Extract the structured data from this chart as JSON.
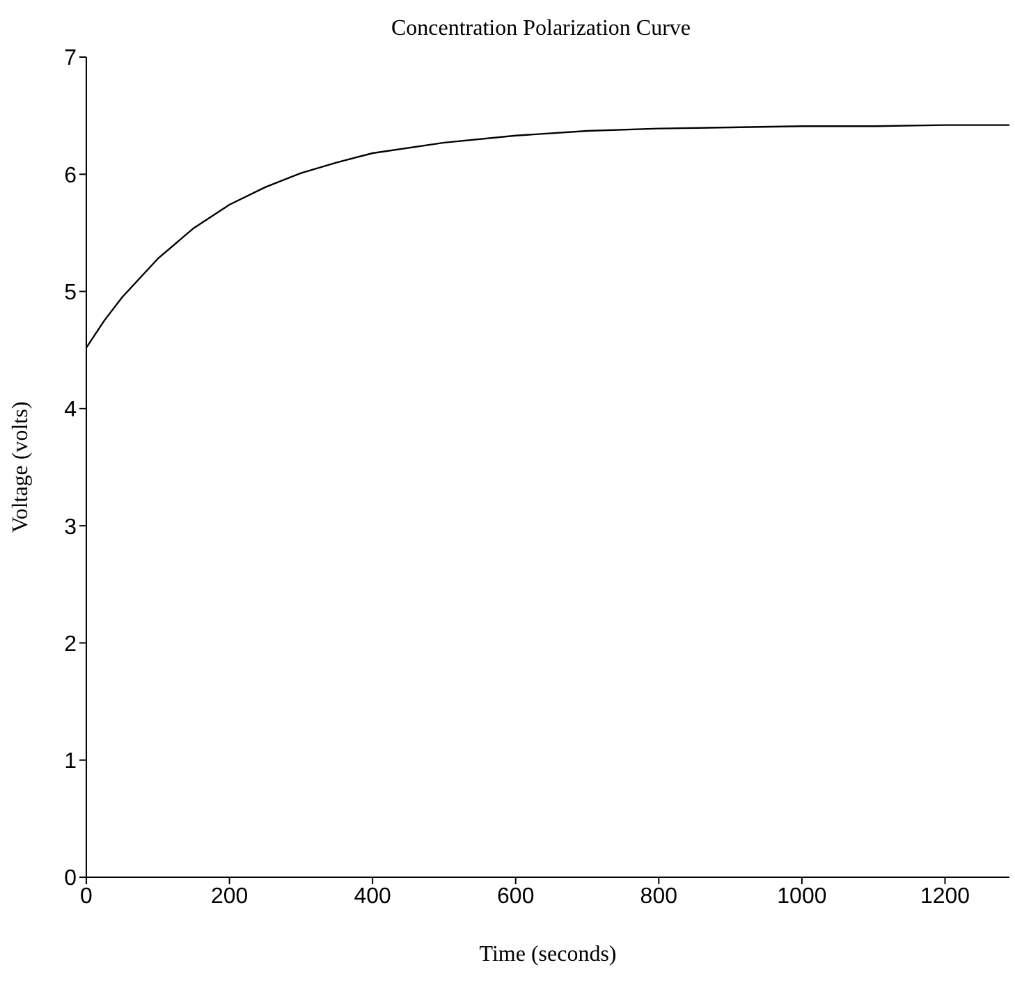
{
  "chart_data": {
    "type": "line",
    "title": "Concentration Polarization Curve",
    "xlabel": "Time (seconds)",
    "ylabel": "Voltage (volts)",
    "x": [
      0,
      25,
      50,
      100,
      150,
      200,
      250,
      300,
      350,
      400,
      500,
      600,
      700,
      800,
      900,
      1000,
      1100,
      1200,
      1290
    ],
    "series": [
      {
        "color": "#000000",
        "values": [
          4.52,
          4.75,
          4.95,
          5.28,
          5.54,
          5.74,
          5.89,
          6.01,
          6.1,
          6.18,
          6.27,
          6.33,
          6.37,
          6.39,
          6.4,
          6.41,
          6.41,
          6.42,
          6.42
        ]
      }
    ],
    "xlim": [
      0,
      1290
    ],
    "xticks": [
      0,
      200,
      400,
      600,
      800,
      1000,
      1200
    ],
    "ylim": [
      0,
      7
    ],
    "yticks": [
      0,
      1,
      2,
      3,
      4,
      5,
      6,
      7
    ],
    "grid": false,
    "legend": false,
    "marker": "none",
    "line_style": "solid"
  }
}
